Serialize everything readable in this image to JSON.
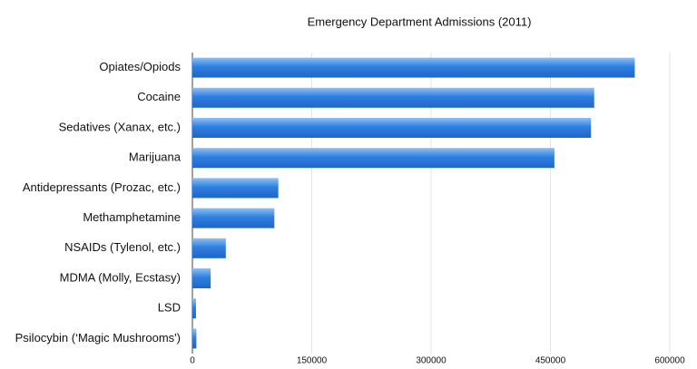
{
  "chart_data": {
    "type": "hbar",
    "title": "Emergency Department Admissions (2011)",
    "categories": [
      "Opiates/Opiods",
      "Cocaine",
      "Sedatives (Xanax, etc.)",
      "Marijuana",
      "Antidepressants (Prozac, etc.)",
      "Methamphetamine",
      "NSAIDs (Tylenol, etc.)",
      "MDMA (Molly, Ecstasy)",
      "LSD",
      "Psilocybin (‘Magic Mushrooms')"
    ],
    "values": [
      556000,
      505000,
      501000,
      455000,
      108000,
      103000,
      42000,
      23000,
      4500,
      5000
    ],
    "color": "#2f7fe0",
    "xlim": [
      0,
      600000
    ],
    "xticks": [
      0,
      150000,
      300000,
      450000,
      600000
    ],
    "grid": true
  }
}
